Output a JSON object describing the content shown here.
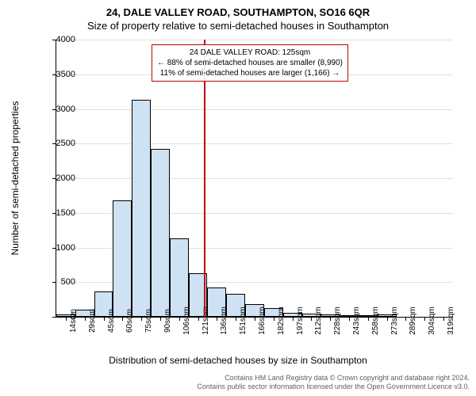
{
  "title_main": "24, DALE VALLEY ROAD, SOUTHAMPTON, SO16 6QR",
  "title_sub": "Size of property relative to semi-detached houses in Southampton",
  "y_axis_label": "Number of semi-detached properties",
  "x_axis_label": "Distribution of semi-detached houses by size in Southampton",
  "footer_line1": "Contains HM Land Registry data © Crown copyright and database right 2024.",
  "footer_line2": "Contains public sector information licensed under the Open Government Licence v3.0.",
  "annotation": {
    "line1": "24 DALE VALLEY ROAD: 125sqm",
    "line2": "← 88% of semi-detached houses are smaller (8,990)",
    "line3": "11% of semi-detached houses are larger (1,166) →",
    "border_color": "#c00000"
  },
  "chart": {
    "type": "histogram",
    "bar_fill": "#cfe2f3",
    "bar_stroke": "#000000",
    "background_color": "#ffffff",
    "grid_color": "#e0e0e0",
    "ylim": [
      0,
      4000
    ],
    "ytick_step": 500,
    "x_categories": [
      "14sqm",
      "29sqm",
      "45sqm",
      "60sqm",
      "75sqm",
      "90sqm",
      "106sqm",
      "121sqm",
      "136sqm",
      "151sqm",
      "166sqm",
      "182sqm",
      "197sqm",
      "212sqm",
      "228sqm",
      "243sqm",
      "258sqm",
      "273sqm",
      "289sqm",
      "304sqm",
      "319sqm"
    ],
    "values": [
      30,
      100,
      370,
      1680,
      3130,
      2420,
      1130,
      630,
      420,
      330,
      180,
      130,
      60,
      50,
      30,
      20,
      20,
      30,
      0,
      0,
      0
    ],
    "refline": {
      "x_index": 7.3,
      "color": "#c00000"
    },
    "label_fontsize": 12,
    "tick_fontsize": 10
  }
}
